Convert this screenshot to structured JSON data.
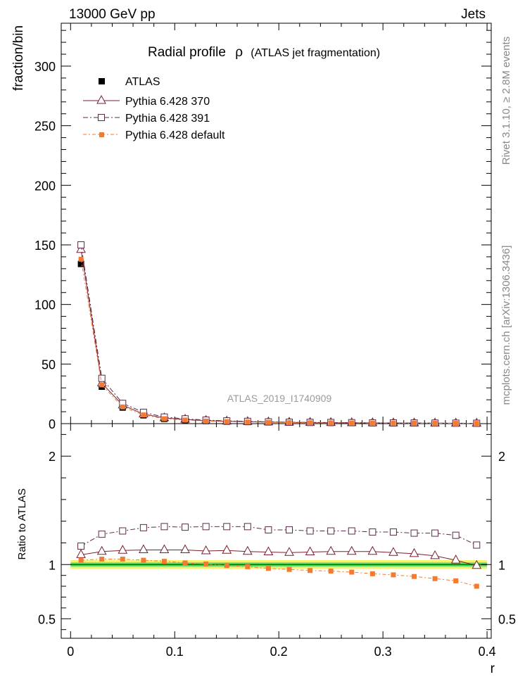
{
  "header": {
    "energy": "13000 GeV pp",
    "category": "Jets"
  },
  "side_labels": {
    "rivet": "Rivet 3.1.10, ≥ 2.8M events",
    "source": "mcplots.cern.ch [arXiv:1306.3436]"
  },
  "chart_data": [
    {
      "type": "line",
      "title_main": "Radial profile",
      "title_symbol": "ρ",
      "title_sub": "(ATLAS jet fragmentation)",
      "analysis_tag": "ATLAS_2019_I1740909",
      "ylabel": "fraction/bin",
      "xlabel": "r",
      "xlim": [
        -0.009,
        0.404
      ],
      "ylim": [
        0,
        336
      ],
      "yticks": [
        0,
        50,
        100,
        150,
        200,
        250,
        300
      ],
      "ytick_labels": [
        "0",
        "50",
        "100",
        "150",
        "200",
        "250",
        "300"
      ],
      "x": [
        0.01,
        0.03,
        0.05,
        0.07,
        0.09,
        0.11,
        0.13,
        0.15,
        0.17,
        0.19,
        0.21,
        0.23,
        0.25,
        0.27,
        0.29,
        0.31,
        0.33,
        0.35,
        0.37,
        0.39
      ],
      "series": [
        {
          "name": "ATLAS",
          "color": "#000000",
          "marker": "square-filled",
          "values": [
            134,
            31,
            13.5,
            7,
            4,
            3,
            2.2,
            1.7,
            1.4,
            1.1,
            0.9,
            0.8,
            0.7,
            0.6,
            0.5,
            0.45,
            0.4,
            0.35,
            0.3,
            0.25
          ]
        },
        {
          "name": "Pythia 6.428 370",
          "color": "#7a1f30",
          "marker": "triangle-open",
          "dash": "",
          "values": [
            146,
            34,
            15.5,
            8,
            4.7,
            3.5,
            2.5,
            2,
            1.6,
            1.3,
            1.05,
            0.9,
            0.8,
            0.7,
            0.57,
            0.5,
            0.45,
            0.4,
            0.32,
            0.25
          ]
        },
        {
          "name": "Pythia 6.428 391",
          "color": "#5a2a48",
          "marker": "square-open",
          "dash": "7,3,2,3",
          "values": [
            150,
            38,
            17,
            9.5,
            5.5,
            4,
            3,
            2.3,
            1.9,
            1.5,
            1.2,
            1.05,
            0.95,
            0.8,
            0.65,
            0.6,
            0.52,
            0.45,
            0.38,
            0.29
          ]
        },
        {
          "name": "Pythia 6.428 default",
          "color": "#f47a30",
          "marker": "square-filled-small",
          "dash": "5,3,2,3",
          "values": [
            138,
            32.5,
            14,
            7.3,
            4.1,
            3,
            2.2,
            1.7,
            1.35,
            1.05,
            0.85,
            0.75,
            0.65,
            0.55,
            0.46,
            0.4,
            0.35,
            0.3,
            0.25,
            0.2
          ]
        }
      ]
    },
    {
      "type": "line",
      "ylabel": "Ratio to ATLAS",
      "xlabel": "r",
      "ylim": [
        0.32,
        2.3
      ],
      "yticks": [
        0.5,
        1,
        2
      ],
      "ytick_labels": [
        "0.5",
        "1",
        "2"
      ],
      "xticks": [
        0,
        0.1,
        0.2,
        0.3,
        0.4
      ],
      "xtick_labels": [
        "0",
        "0.1",
        "0.2",
        "0.3",
        "0.4"
      ],
      "band_inner": 0.02,
      "band_outer": 0.04,
      "band_inner_color": "#6fe07a",
      "band_outer_color": "#f3f36a",
      "reference_color": "#008c00",
      "x": [
        0.01,
        0.03,
        0.05,
        0.07,
        0.09,
        0.11,
        0.13,
        0.15,
        0.17,
        0.19,
        0.21,
        0.23,
        0.25,
        0.27,
        0.29,
        0.31,
        0.33,
        0.35,
        0.37,
        0.39
      ],
      "series": [
        {
          "name": "Pythia 6.428 370",
          "color": "#7a1f30",
          "marker": "triangle-open",
          "dash": "",
          "values": [
            1.09,
            1.12,
            1.13,
            1.135,
            1.135,
            1.135,
            1.125,
            1.13,
            1.12,
            1.115,
            1.11,
            1.115,
            1.12,
            1.12,
            1.12,
            1.11,
            1.1,
            1.08,
            1.04,
            0.99
          ]
        },
        {
          "name": "Pythia 6.428 391",
          "color": "#5a2a48",
          "marker": "square-open",
          "dash": "7,3,2,3",
          "values": [
            1.17,
            1.28,
            1.31,
            1.34,
            1.35,
            1.345,
            1.35,
            1.35,
            1.35,
            1.32,
            1.32,
            1.31,
            1.31,
            1.31,
            1.3,
            1.3,
            1.29,
            1.29,
            1.27,
            1.18
          ]
        },
        {
          "name": "Pythia 6.428 default",
          "color": "#f47a30",
          "marker": "square-filled-small",
          "dash": "5,3,2,3",
          "values": [
            1.04,
            1.05,
            1.05,
            1.04,
            1.03,
            1.015,
            1.005,
            0.99,
            0.98,
            0.965,
            0.955,
            0.945,
            0.94,
            0.93,
            0.915,
            0.905,
            0.89,
            0.87,
            0.85,
            0.8
          ]
        }
      ]
    }
  ]
}
